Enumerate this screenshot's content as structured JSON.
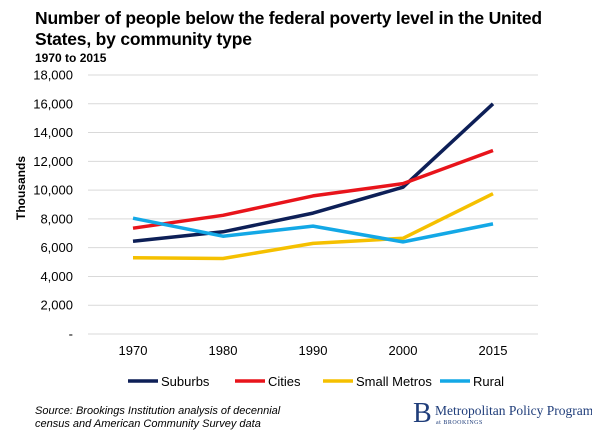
{
  "chart_data": {
    "type": "line",
    "title": "Number of people below the federal poverty level in the United States, by community type",
    "subtitle": "1970 to 2015",
    "xlabel": "",
    "ylabel": "Thousands",
    "categories": [
      "1970",
      "1980",
      "1990",
      "2000",
      "2015"
    ],
    "ylim": [
      0,
      18000
    ],
    "yticks": [
      "-",
      "2,000",
      "4,000",
      "6,000",
      "8,000",
      "10,000",
      "12,000",
      "14,000",
      "16,000",
      "18,000"
    ],
    "grid": true,
    "legend": "bottom",
    "series": [
      {
        "name": "Suburbs",
        "color": "#0d1f57",
        "values": [
          6450,
          7100,
          8400,
          10200,
          16000
        ]
      },
      {
        "name": "Cities",
        "color": "#e8141b",
        "values": [
          7350,
          8250,
          9600,
          10450,
          12750
        ]
      },
      {
        "name": "Small Metros",
        "color": "#f5c000",
        "values": [
          5300,
          5250,
          6300,
          6650,
          9750
        ]
      },
      {
        "name": "Rural",
        "color": "#13a8e6",
        "values": [
          8050,
          6800,
          7500,
          6400,
          7650
        ]
      }
    ]
  },
  "source": {
    "line1": "Source: Brookings Institution analysis of decennial",
    "line2": "census and American Community Survey data"
  },
  "logo": {
    "letter": "B",
    "name": "Metropolitan Policy Program",
    "sub": "at BROOKINGS"
  }
}
